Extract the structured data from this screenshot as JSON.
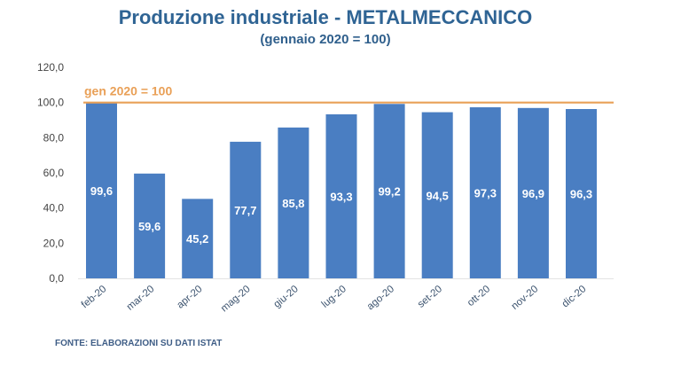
{
  "chart_data": {
    "type": "bar",
    "title": "Produzione industriale - METALMECCANICO",
    "subtitle": "(gennaio 2020 = 100)",
    "categories": [
      "feb-20",
      "mar-20",
      "apr-20",
      "mag-20",
      "giu-20",
      "lug-20",
      "ago-20",
      "set-20",
      "ott-20",
      "nov-20",
      "dic-20"
    ],
    "values": [
      99.6,
      59.6,
      45.2,
      77.7,
      85.8,
      93.3,
      99.2,
      94.5,
      97.3,
      96.9,
      96.3
    ],
    "data_labels": [
      "99,6",
      "59,6",
      "45,2",
      "77,7",
      "85,8",
      "93,3",
      "99,2",
      "94,5",
      "97,3",
      "96,9",
      "96,3"
    ],
    "yticks": [
      0,
      20,
      40,
      60,
      80,
      100,
      120
    ],
    "ytick_labels": [
      "0,0",
      "20,0",
      "40,0",
      "60,0",
      "80,0",
      "100,0",
      "120,0"
    ],
    "ylim": [
      0,
      120
    ],
    "xlabel": "",
    "ylabel": "",
    "reference_line": {
      "value": 100,
      "label": "gen 2020 = 100",
      "color": "#e9a057"
    },
    "bar_color": "#4a7ec2",
    "grid": false,
    "source": "FONTE: ELABORAZIONI SU DATI ISTAT"
  }
}
